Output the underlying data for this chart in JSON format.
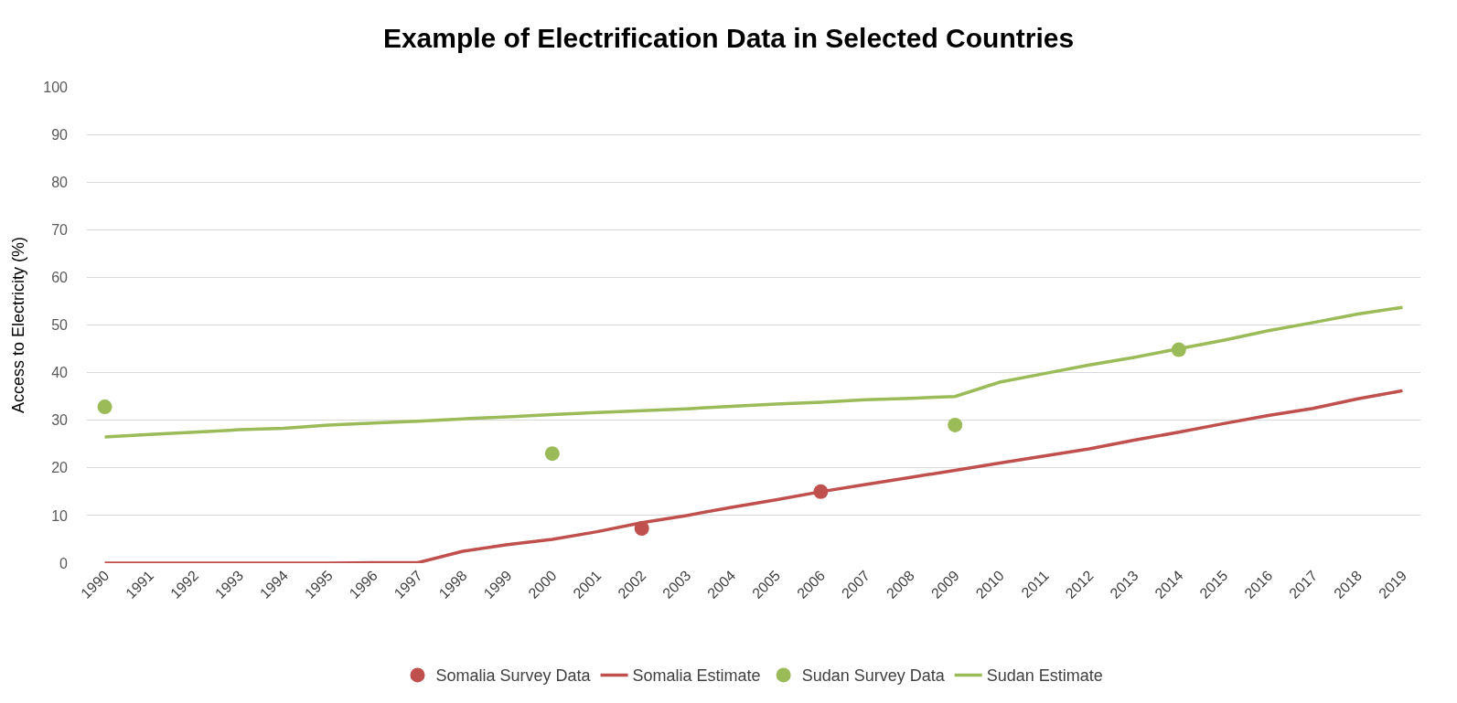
{
  "chart_data": {
    "type": "line",
    "title": "Example of Electrification Data in Selected Countries",
    "ylabel": "Access to Electricity (%)",
    "categories": [
      "1990",
      "1991",
      "1992",
      "1993",
      "1994",
      "1995",
      "1996",
      "1997",
      "1998",
      "1999",
      "2000",
      "2001",
      "2002",
      "2003",
      "2004",
      "2005",
      "2006",
      "2007",
      "2008",
      "2009",
      "2010",
      "2011",
      "2012",
      "2013",
      "2014",
      "2015",
      "2016",
      "2017",
      "2018",
      "2019"
    ],
    "ylim": [
      0,
      100
    ],
    "yticks": [
      0,
      10,
      20,
      30,
      40,
      50,
      60,
      70,
      80,
      90,
      100
    ],
    "grid": "y",
    "legend": "bottom",
    "series": [
      {
        "name": "Somalia Survey Data",
        "type": "scatter",
        "color": "#c0504d",
        "values": [
          null,
          null,
          null,
          null,
          null,
          null,
          null,
          null,
          null,
          null,
          null,
          null,
          7.3,
          null,
          null,
          null,
          15,
          null,
          null,
          null,
          null,
          null,
          null,
          null,
          null,
          null,
          null,
          null,
          null,
          null
        ]
      },
      {
        "name": "Somalia Estimate",
        "color": "#c0504d",
        "values": [
          0,
          0,
          0,
          0,
          0,
          0,
          0.1,
          0.1,
          2.5,
          3.9,
          5,
          6.6,
          8.5,
          10,
          11.7,
          13.3,
          15,
          16.5,
          18,
          19.5,
          21,
          22.5,
          24,
          25.8,
          27.5,
          29.3,
          31,
          32.5,
          34.5,
          36.2
        ]
      },
      {
        "name": "Sudan Survey Data",
        "type": "scatter",
        "color": "#9bbb59",
        "values": [
          32.8,
          null,
          null,
          null,
          null,
          null,
          null,
          null,
          null,
          null,
          23,
          null,
          null,
          null,
          null,
          null,
          null,
          null,
          null,
          29,
          null,
          null,
          null,
          null,
          44.8,
          null,
          null,
          null,
          null,
          null
        ]
      },
      {
        "name": "Sudan Estimate",
        "color": "#9bbb59",
        "values": [
          26.5,
          27,
          27.5,
          28,
          28.3,
          29,
          29.4,
          29.8,
          30.3,
          30.7,
          31.2,
          31.6,
          32,
          32.4,
          32.9,
          33.4,
          33.8,
          34.3,
          34.6,
          35,
          38,
          39.8,
          41.6,
          43.2,
          45,
          46.8,
          48.8,
          50.5,
          52.3,
          53.7
        ]
      }
    ]
  }
}
